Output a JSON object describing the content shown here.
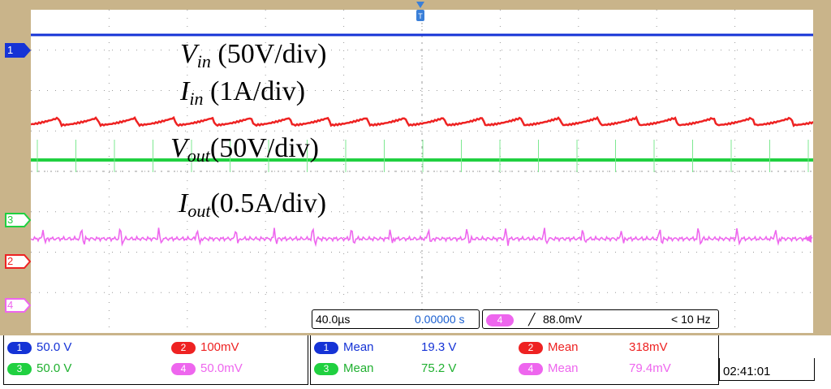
{
  "channels": [
    {
      "id": "1",
      "color": "#1533d6",
      "scale": "50.0 V",
      "mean_value": "19.3 V"
    },
    {
      "id": "2",
      "color": "#ee2222",
      "scale": "100mV",
      "mean_value": "318mV"
    },
    {
      "id": "3",
      "color": "#20d040",
      "scale": "50.0 V",
      "mean_value": "75.2 V"
    },
    {
      "id": "4",
      "color": "#ee66ee",
      "scale": "50.0mV",
      "mean_value": "79.4mV"
    }
  ],
  "mean_label": "Mean",
  "labels": {
    "vin": {
      "var": "V",
      "sub": "in",
      "text": " (50V/div)"
    },
    "iin": {
      "var": "I",
      "sub": "in",
      "text": " (1A/div)"
    },
    "vout": {
      "var": "V",
      "sub": "out",
      "text": "(50V/div)"
    },
    "iout": {
      "var": "I",
      "sub": "out",
      "text": "(0.5A/div)"
    }
  },
  "timebase": "40.0µs",
  "delay": "0.00000 s",
  "trigger_channel": "4",
  "trigger_level": "88.0mV",
  "trigger_freq": "< 10 Hz",
  "clock": "02:41:01",
  "colors": {
    "frame": "#c9b48a",
    "grid": "#9a9a9a"
  }
}
